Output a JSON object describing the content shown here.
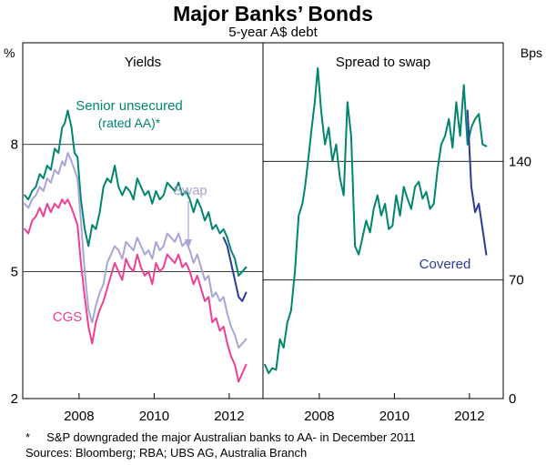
{
  "title": "Major Banks’ Bonds",
  "subtitle": "5-year A$ debt",
  "footnote": "*     S&P downgraded the major Australian banks to AA- in December 2011",
  "sources": "Sources: Bloomberg; RBA; UBS AG, Australia Branch",
  "colors": {
    "senior": "#00866e",
    "swap": "#a7a6d6",
    "cgs": "#ee3f94",
    "covered": "#2b3b9c",
    "spread": "#00866e",
    "axis": "#000000"
  },
  "chart_data": [
    {
      "type": "line",
      "panel_title": "Yields",
      "ylabel": "%",
      "ylim": [
        2,
        10.4
      ],
      "yticks": [
        2,
        5,
        8
      ],
      "xlim": [
        2006.5,
        2012.9
      ],
      "xticks": [
        2008,
        2010,
        2012
      ],
      "xtick_labels": [
        "2008",
        "2010",
        "2012"
      ],
      "series": [
        {
          "name": "Senior unsecured (rated AA)*",
          "key": "senior",
          "x": [
            2006.55,
            2006.65,
            2006.75,
            2006.85,
            2006.95,
            2007.05,
            2007.15,
            2007.25,
            2007.35,
            2007.45,
            2007.55,
            2007.62,
            2007.7,
            2007.8,
            2007.88,
            2007.96,
            2008.05,
            2008.15,
            2008.25,
            2008.35,
            2008.45,
            2008.55,
            2008.65,
            2008.75,
            2008.85,
            2008.95,
            2009.05,
            2009.15,
            2009.25,
            2009.35,
            2009.45,
            2009.55,
            2009.65,
            2009.75,
            2009.85,
            2009.95,
            2010.05,
            2010.15,
            2010.25,
            2010.35,
            2010.45,
            2010.55,
            2010.65,
            2010.75,
            2010.85,
            2010.95,
            2011.05,
            2011.15,
            2011.25,
            2011.35,
            2011.45,
            2011.55,
            2011.65,
            2011.75,
            2011.85,
            2011.95,
            2012.05,
            2012.15,
            2012.25,
            2012.35,
            2012.45
          ],
          "y": [
            6.8,
            6.7,
            6.9,
            7.0,
            7.3,
            7.2,
            7.5,
            7.4,
            7.9,
            7.8,
            8.4,
            8.5,
            8.8,
            8.4,
            7.8,
            7.7,
            6.7,
            6.0,
            5.6,
            6.1,
            6.0,
            6.4,
            7.0,
            7.2,
            7.1,
            7.5,
            7.0,
            6.8,
            7.0,
            6.9,
            6.7,
            7.2,
            7.0,
            6.8,
            6.9,
            6.6,
            6.9,
            6.7,
            6.8,
            7.1,
            7.0,
            6.9,
            7.1,
            6.8,
            6.9,
            6.7,
            6.4,
            6.7,
            6.5,
            6.2,
            6.4,
            6.0,
            6.1,
            5.9,
            6.0,
            5.8,
            5.5,
            5.3,
            4.9,
            5.0,
            5.1
          ]
        },
        {
          "name": "Swap",
          "key": "swap",
          "x": [
            2006.55,
            2006.65,
            2006.75,
            2006.85,
            2006.95,
            2007.05,
            2007.15,
            2007.25,
            2007.35,
            2007.45,
            2007.55,
            2007.62,
            2007.7,
            2007.8,
            2007.88,
            2007.96,
            2008.05,
            2008.15,
            2008.25,
            2008.35,
            2008.45,
            2008.55,
            2008.65,
            2008.75,
            2008.85,
            2008.95,
            2009.05,
            2009.15,
            2009.25,
            2009.35,
            2009.45,
            2009.55,
            2009.65,
            2009.75,
            2009.85,
            2009.95,
            2010.05,
            2010.15,
            2010.25,
            2010.35,
            2010.45,
            2010.55,
            2010.65,
            2010.75,
            2010.85,
            2010.95,
            2011.05,
            2011.15,
            2011.25,
            2011.35,
            2011.45,
            2011.55,
            2011.65,
            2011.75,
            2011.85,
            2011.95,
            2012.05,
            2012.15,
            2012.25,
            2012.35,
            2012.45
          ],
          "y": [
            6.6,
            6.5,
            6.7,
            6.8,
            7.0,
            6.9,
            7.2,
            7.1,
            7.4,
            7.3,
            7.6,
            7.5,
            7.8,
            7.6,
            7.4,
            7.2,
            6.2,
            5.0,
            4.1,
            3.8,
            4.2,
            4.5,
            4.7,
            5.2,
            5.4,
            5.6,
            5.5,
            5.3,
            5.7,
            5.6,
            5.5,
            5.8,
            5.6,
            5.4,
            5.5,
            5.3,
            5.7,
            5.5,
            5.6,
            5.9,
            5.8,
            5.7,
            5.9,
            5.6,
            5.7,
            5.5,
            5.2,
            5.4,
            5.1,
            4.8,
            4.9,
            4.4,
            4.5,
            4.3,
            4.4,
            4.0,
            3.7,
            3.5,
            3.2,
            3.3,
            3.4
          ]
        },
        {
          "name": "CGS",
          "key": "cgs",
          "x": [
            2006.55,
            2006.65,
            2006.75,
            2006.85,
            2006.95,
            2007.05,
            2007.15,
            2007.25,
            2007.35,
            2007.45,
            2007.55,
            2007.62,
            2007.7,
            2007.8,
            2007.88,
            2007.96,
            2008.05,
            2008.15,
            2008.25,
            2008.35,
            2008.45,
            2008.55,
            2008.65,
            2008.75,
            2008.85,
            2008.95,
            2009.05,
            2009.15,
            2009.25,
            2009.35,
            2009.45,
            2009.55,
            2009.65,
            2009.75,
            2009.85,
            2009.95,
            2010.05,
            2010.15,
            2010.25,
            2010.35,
            2010.45,
            2010.55,
            2010.65,
            2010.75,
            2010.85,
            2010.95,
            2011.05,
            2011.15,
            2011.25,
            2011.35,
            2011.45,
            2011.55,
            2011.65,
            2011.75,
            2011.85,
            2011.95,
            2012.05,
            2012.15,
            2012.25,
            2012.35,
            2012.45
          ],
          "y": [
            6.0,
            5.9,
            6.2,
            6.3,
            6.5,
            6.3,
            6.6,
            6.4,
            6.6,
            6.5,
            6.7,
            6.6,
            6.7,
            6.5,
            6.3,
            6.1,
            5.2,
            4.4,
            3.7,
            3.3,
            3.8,
            4.1,
            4.3,
            4.6,
            4.9,
            5.2,
            5.0,
            4.8,
            5.3,
            5.1,
            5.0,
            5.4,
            5.1,
            4.9,
            5.0,
            4.7,
            5.2,
            5.0,
            5.1,
            5.4,
            5.3,
            5.2,
            5.4,
            5.1,
            5.2,
            5.0,
            4.7,
            4.9,
            4.6,
            4.3,
            4.4,
            3.8,
            3.9,
            3.6,
            3.7,
            3.3,
            3.0,
            2.8,
            2.4,
            2.6,
            2.8
          ]
        },
        {
          "name": "Covered",
          "key": "covered",
          "x": [
            2011.85,
            2011.95,
            2012.05,
            2012.15,
            2012.25,
            2012.35,
            2012.45
          ],
          "y": [
            5.8,
            5.6,
            5.2,
            4.8,
            4.4,
            4.3,
            4.5
          ]
        }
      ],
      "labels": {
        "senior_line1": "Senior unsecured",
        "senior_line2": "(rated AA)*",
        "swap": "Swap",
        "cgs": "CGS"
      }
    },
    {
      "type": "line",
      "panel_title": "Spread to swap",
      "ylabel": "Bps",
      "ylim": [
        0,
        210
      ],
      "yticks": [
        0,
        70,
        140
      ],
      "xlim": [
        2006.5,
        2012.9
      ],
      "xticks": [
        2008,
        2010,
        2012
      ],
      "xtick_labels": [
        "2008",
        "2010",
        "2012"
      ],
      "series": [
        {
          "name": "Senior unsecured",
          "key": "spread",
          "x": [
            2006.55,
            2006.65,
            2006.75,
            2006.85,
            2006.95,
            2007.05,
            2007.15,
            2007.25,
            2007.35,
            2007.45,
            2007.55,
            2007.62,
            2007.7,
            2007.8,
            2007.88,
            2007.96,
            2008.05,
            2008.15,
            2008.25,
            2008.35,
            2008.45,
            2008.55,
            2008.65,
            2008.75,
            2008.85,
            2008.95,
            2009.05,
            2009.15,
            2009.25,
            2009.35,
            2009.45,
            2009.55,
            2009.65,
            2009.75,
            2009.85,
            2009.95,
            2010.05,
            2010.15,
            2010.25,
            2010.35,
            2010.45,
            2010.55,
            2010.65,
            2010.75,
            2010.85,
            2010.95,
            2011.05,
            2011.15,
            2011.25,
            2011.35,
            2011.45,
            2011.55,
            2011.65,
            2011.75,
            2011.85,
            2011.95,
            2012.05,
            2012.15,
            2012.25,
            2012.35,
            2012.45
          ],
          "y": [
            20,
            15,
            18,
            17,
            35,
            30,
            45,
            52,
            75,
            108,
            115,
            125,
            140,
            160,
            175,
            195,
            170,
            150,
            160,
            140,
            150,
            130,
            120,
            175,
            155,
            90,
            85,
            95,
            105,
            98,
            112,
            120,
            108,
            115,
            100,
            102,
            120,
            108,
            125,
            118,
            112,
            125,
            128,
            118,
            122,
            112,
            115,
            135,
            150,
            155,
            165,
            148,
            175,
            155,
            185,
            150,
            160,
            165,
            168,
            150,
            149
          ]
        },
        {
          "name": "Covered",
          "key": "covered",
          "x": [
            2011.95,
            2012.05,
            2012.15,
            2012.25,
            2012.35,
            2012.45
          ],
          "y": [
            170,
            125,
            110,
            115,
            100,
            85
          ]
        }
      ],
      "labels": {
        "covered": "Covered"
      }
    }
  ]
}
